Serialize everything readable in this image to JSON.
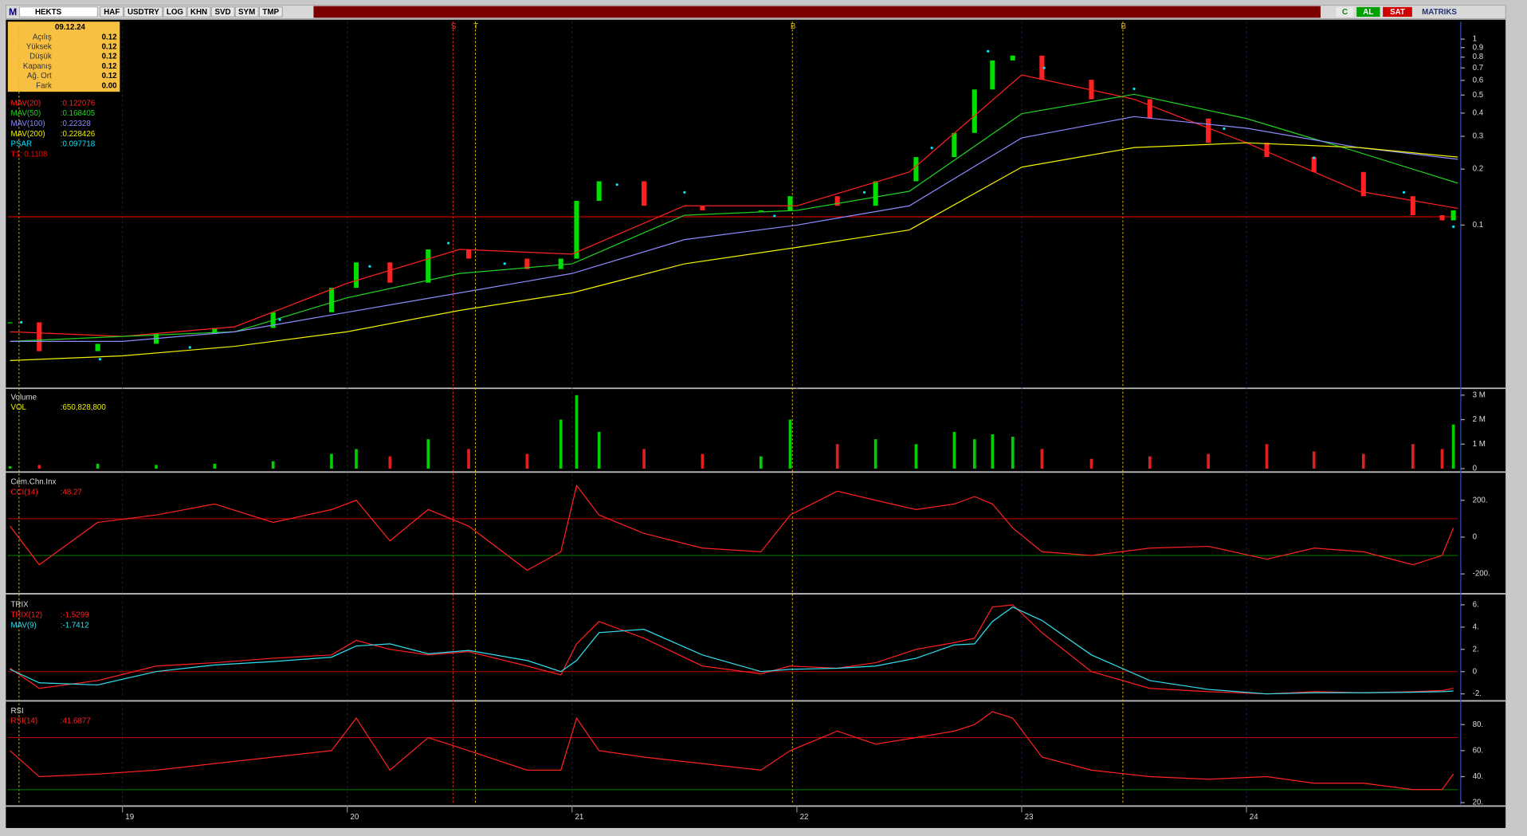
{
  "toolbar": {
    "logo": "M",
    "symbol": "HEKTS",
    "buttons": [
      "HAF",
      "USDTRY",
      "LOG",
      "KHN",
      "SVD",
      "SYM",
      "TMP"
    ],
    "right": [
      "C",
      "AL",
      "SAT"
    ],
    "brand": "MATRIKS"
  },
  "info_box": {
    "date": "09.12.24",
    "rows": [
      [
        "Açılış",
        "0.12"
      ],
      [
        "Yüksek",
        "0.12"
      ],
      [
        "Düşük",
        "0.12"
      ],
      [
        "Kapanış",
        "0.12"
      ],
      [
        "Ağ. Ort",
        "0.12"
      ],
      [
        "Fark",
        "0.00"
      ]
    ]
  },
  "signals": [
    {
      "label": null,
      "x": 18.54,
      "color": "#e0c000"
    },
    {
      "label": "S",
      "x": 20.47,
      "color": "#ff3030"
    },
    {
      "label": "T",
      "x": 20.57,
      "color": "#e0c000"
    },
    {
      "label": "B",
      "x": 21.98,
      "color": "#e0c000"
    },
    {
      "label": "B",
      "x": 23.45,
      "color": "#e0c000"
    }
  ],
  "chart_data": [
    {
      "type": "line",
      "log": true,
      "xlim": [
        18.49,
        24.94
      ],
      "ylim": [
        0.0135,
        1.1
      ],
      "yticks": [
        1,
        0.9,
        0.8,
        0.7,
        0.6,
        0.5,
        0.4,
        0.3,
        0.2,
        0.1
      ],
      "hlines": [
        {
          "value": 0.1108,
          "color": "#ff0000"
        }
      ],
      "series": [
        {
          "style": "candles",
          "color": "#00e000",
          "down_color": "#ff2020",
          "x": [
            18.5,
            18.63,
            18.89,
            19.15,
            19.41,
            19.67,
            19.93,
            20.04,
            20.19,
            20.36,
            20.54,
            20.8,
            20.95,
            21.02,
            21.12,
            21.32,
            21.58,
            21.84,
            21.97,
            22.18,
            22.35,
            22.53,
            22.7,
            22.79,
            22.87,
            22.96,
            23.09,
            23.31,
            23.57,
            23.83,
            24.09,
            24.3,
            24.52,
            24.74,
            24.87,
            24.92
          ],
          "values": [
            0.03,
            0.021,
            0.023,
            0.026,
            0.028,
            0.034,
            0.046,
            0.063,
            0.049,
            0.074,
            0.066,
            0.058,
            0.066,
            0.135,
            0.172,
            0.127,
            0.12,
            0.12,
            0.143,
            0.127,
            0.172,
            0.232,
            0.313,
            0.536,
            0.768,
            0.815,
            0.604,
            0.475,
            0.374,
            0.277,
            0.232,
            0.193,
            0.143,
            0.113,
            0.106,
            0.12
          ]
        },
        {
          "name": "MAV(20)",
          "legend_label": ":0.122076",
          "color": "#ff2020",
          "x": [
            18.5,
            19,
            19.5,
            20,
            20.5,
            21,
            21.5,
            22,
            22.5,
            23,
            23.5,
            24,
            24.5,
            24.94
          ],
          "values": [
            0.0267,
            0.0252,
            0.0284,
            0.0487,
            0.0741,
            0.0698,
            0.127,
            0.127,
            0.193,
            0.642,
            0.475,
            0.277,
            0.152,
            0.123
          ]
        },
        {
          "name": "MAV(50)",
          "legend_label": ":0.168405",
          "color": "#20d020",
          "x": [
            18.5,
            19,
            19.5,
            20,
            20.5,
            21,
            21.5,
            22,
            22.5,
            23,
            23.5,
            24,
            24.5,
            24.94
          ],
          "values": [
            0.0237,
            0.0252,
            0.0267,
            0.0407,
            0.0549,
            0.0619,
            0.113,
            0.12,
            0.152,
            0.397,
            0.505,
            0.374,
            0.246,
            0.168
          ]
        },
        {
          "name": "MAV(100)",
          "legend_label": ":0.22328",
          "color": "#8c8cff",
          "x": [
            18.5,
            19,
            19.5,
            20,
            20.5,
            21,
            21.5,
            22,
            22.5,
            23,
            23.5,
            24,
            24.5,
            24.94
          ],
          "values": [
            0.0237,
            0.0237,
            0.0267,
            0.034,
            0.0432,
            0.0549,
            0.0836,
            0.1,
            0.127,
            0.294,
            0.383,
            0.332,
            0.261,
            0.226
          ]
        },
        {
          "name": "MAV(200)",
          "legend_label": ":0.228426",
          "color": "#f0f000",
          "x": [
            18.5,
            19,
            19.5,
            20,
            20.5,
            21,
            21.5,
            22,
            22.5,
            23,
            23.5,
            24,
            24.5,
            24.94
          ],
          "values": [
            0.0187,
            0.0198,
            0.0223,
            0.0267,
            0.0348,
            0.0432,
            0.0619,
            0.0759,
            0.0942,
            0.205,
            0.261,
            0.277,
            0.261,
            0.232
          ]
        },
        {
          "name": "PSAR",
          "legend_label": ":0.097718",
          "color": "#00e8ff",
          "style": "dots",
          "x": [
            18.55,
            18.9,
            19.3,
            19.7,
            20.1,
            20.45,
            20.7,
            21.2,
            21.5,
            21.9,
            22.3,
            22.6,
            22.85,
            23.1,
            23.5,
            23.9,
            24.3,
            24.7,
            24.92
          ],
          "values": [
            0.03,
            0.019,
            0.022,
            0.031,
            0.06,
            0.08,
            0.062,
            0.165,
            0.15,
            0.112,
            0.15,
            0.26,
            0.86,
            0.7,
            0.54,
            0.33,
            0.23,
            0.15,
            0.098
          ]
        }
      ],
      "extra_legend": [
        {
          "text": "T1: 0.1108",
          "color": "#ff0000"
        }
      ]
    },
    {
      "type": "bar",
      "title": "Volume",
      "xlim": [
        18.49,
        24.94
      ],
      "ylim": [
        -80000,
        3180000
      ],
      "yticks": [
        {
          "value": 3000000,
          "label": "3 M"
        },
        {
          "value": 2000000,
          "label": "2 M"
        },
        {
          "value": 1000000,
          "label": "1 M"
        },
        0
      ],
      "series": [
        {
          "name": "VOL",
          "legend_label": ":650,828,800",
          "color": "#00d000",
          "down_color": "#e02020",
          "x": [
            18.5,
            18.63,
            18.89,
            19.15,
            19.41,
            19.67,
            19.93,
            20.04,
            20.19,
            20.36,
            20.54,
            20.8,
            20.95,
            21.02,
            21.12,
            21.32,
            21.58,
            21.84,
            21.97,
            22.18,
            22.35,
            22.53,
            22.7,
            22.79,
            22.87,
            22.96,
            23.09,
            23.31,
            23.57,
            23.83,
            24.09,
            24.3,
            24.52,
            24.74,
            24.87,
            24.92
          ],
          "values": [
            100000,
            150000,
            200000,
            150000,
            200000,
            300000,
            600000,
            800000,
            500000,
            1200000,
            800000,
            600000,
            2000000,
            3000000,
            1500000,
            800000,
            600000,
            500000,
            2000000,
            1000000,
            1200000,
            1000000,
            1500000,
            1200000,
            1400000,
            1300000,
            800000,
            400000,
            500000,
            600000,
            1000000,
            700000,
            600000,
            1000000,
            800000,
            1800000
          ]
        }
      ]
    },
    {
      "type": "line",
      "title": "Cem.Chn.Inx",
      "xlim": [
        18.49,
        24.94
      ],
      "ylim": [
        -300,
        335
      ],
      "yticks": [
        {
          "value": 200,
          "label": "200."
        },
        0,
        {
          "value": -200,
          "label": "-200."
        }
      ],
      "hlines": [
        {
          "value": 100,
          "color": "#c00000"
        },
        {
          "value": -100,
          "color": "#008000"
        }
      ],
      "series": [
        {
          "name": "CCI(14)",
          "legend_label": ":48.27",
          "color": "#ff2020",
          "x": [
            18.5,
            18.63,
            18.89,
            19.15,
            19.41,
            19.67,
            19.93,
            20.04,
            20.19,
            20.36,
            20.54,
            20.8,
            20.95,
            21.02,
            21.12,
            21.32,
            21.58,
            21.84,
            21.97,
            22.18,
            22.35,
            22.53,
            22.7,
            22.79,
            22.87,
            22.96,
            23.09,
            23.31,
            23.57,
            23.83,
            24.09,
            24.3,
            24.52,
            24.74,
            24.87,
            24.92
          ],
          "values": [
            60,
            -150,
            80,
            120,
            180,
            80,
            150,
            200,
            -20,
            150,
            60,
            -180,
            -80,
            280,
            120,
            20,
            -60,
            -80,
            120,
            250,
            200,
            150,
            180,
            220,
            180,
            50,
            -80,
            -100,
            -60,
            -50,
            -120,
            -60,
            -80,
            -150,
            -100,
            50
          ]
        }
      ]
    },
    {
      "type": "line",
      "title": "TRIX",
      "xlim": [
        18.49,
        24.94
      ],
      "ylim": [
        -2.5,
        6.6
      ],
      "yticks": [
        {
          "value": 6,
          "label": "6."
        },
        {
          "value": 4,
          "label": "4."
        },
        {
          "value": 2,
          "label": "2."
        },
        0,
        {
          "value": -2,
          "label": "-2."
        }
      ],
      "hlines": [
        {
          "value": 0,
          "color": "#c00000"
        }
      ],
      "series": [
        {
          "name": "TRIX(12)",
          "legend_label": ":-1.5299",
          "color": "#ff2020",
          "x": [
            18.5,
            18.63,
            18.89,
            19.15,
            19.41,
            19.67,
            19.93,
            20.04,
            20.19,
            20.36,
            20.54,
            20.8,
            20.95,
            21.02,
            21.12,
            21.32,
            21.58,
            21.84,
            21.97,
            22.18,
            22.35,
            22.53,
            22.7,
            22.79,
            22.87,
            22.96,
            23.09,
            23.31,
            23.57,
            23.83,
            24.09,
            24.3,
            24.52,
            24.74,
            24.87,
            24.92
          ],
          "values": [
            0.3,
            -1.5,
            -0.8,
            0.5,
            0.8,
            1.2,
            1.5,
            2.8,
            2.0,
            1.5,
            1.8,
            0.5,
            -0.3,
            2.5,
            4.5,
            3.0,
            0.5,
            -0.2,
            0.5,
            0.3,
            0.8,
            2.0,
            2.6,
            3.0,
            5.8,
            6.0,
            3.5,
            0,
            -1.5,
            -1.8,
            -2.0,
            -1.8,
            -1.9,
            -1.8,
            -1.7,
            -1.5
          ]
        },
        {
          "name": "MAV(9)",
          "legend_label": ":-1.7412",
          "color": "#30e0f0",
          "x": [
            18.5,
            18.63,
            18.89,
            19.15,
            19.41,
            19.67,
            19.93,
            20.04,
            20.19,
            20.36,
            20.54,
            20.8,
            20.95,
            21.02,
            21.12,
            21.32,
            21.58,
            21.84,
            21.97,
            22.18,
            22.35,
            22.53,
            22.7,
            22.79,
            22.87,
            22.96,
            23.09,
            23.31,
            23.57,
            23.83,
            24.09,
            24.3,
            24.52,
            24.74,
            24.87,
            24.92
          ],
          "values": [
            0.2,
            -1.0,
            -1.2,
            0,
            0.6,
            0.9,
            1.3,
            2.3,
            2.5,
            1.6,
            1.9,
            1.0,
            0,
            1.0,
            3.5,
            3.8,
            1.5,
            0,
            0.2,
            0.3,
            0.5,
            1.2,
            2.4,
            2.5,
            4.5,
            5.8,
            4.6,
            1.5,
            -0.8,
            -1.6,
            -2.0,
            -1.9,
            -1.9,
            -1.85,
            -1.8,
            -1.74
          ]
        }
      ]
    },
    {
      "type": "line",
      "title": "RSI",
      "xlim": [
        18.49,
        24.94
      ],
      "ylim": [
        18.5,
        95.6
      ],
      "yticks": [
        {
          "value": 80,
          "label": "80."
        },
        {
          "value": 60,
          "label": "60."
        },
        {
          "value": 40,
          "label": "40."
        },
        {
          "value": 20,
          "label": "20."
        }
      ],
      "xticks": [
        19,
        20,
        21,
        22,
        23,
        24
      ],
      "hlines": [
        {
          "value": 70,
          "color": "#c00000"
        },
        {
          "value": 30,
          "color": "#008000"
        }
      ],
      "series": [
        {
          "name": "RSI(14)",
          "legend_label": ":41.6877",
          "color": "#ff2020",
          "x": [
            18.5,
            18.63,
            18.89,
            19.15,
            19.41,
            19.67,
            19.93,
            20.04,
            20.19,
            20.36,
            20.54,
            20.8,
            20.95,
            21.02,
            21.12,
            21.32,
            21.58,
            21.84,
            21.97,
            22.18,
            22.35,
            22.53,
            22.7,
            22.79,
            22.87,
            22.96,
            23.09,
            23.31,
            23.57,
            23.83,
            24.09,
            24.3,
            24.52,
            24.74,
            24.87,
            24.92
          ],
          "values": [
            60,
            40,
            42,
            45,
            50,
            55,
            60,
            85,
            45,
            70,
            60,
            45,
            45,
            85,
            60,
            55,
            50,
            45,
            60,
            75,
            65,
            70,
            75,
            80,
            90,
            85,
            55,
            45,
            40,
            38,
            40,
            35,
            35,
            30,
            30,
            42
          ]
        }
      ]
    }
  ]
}
